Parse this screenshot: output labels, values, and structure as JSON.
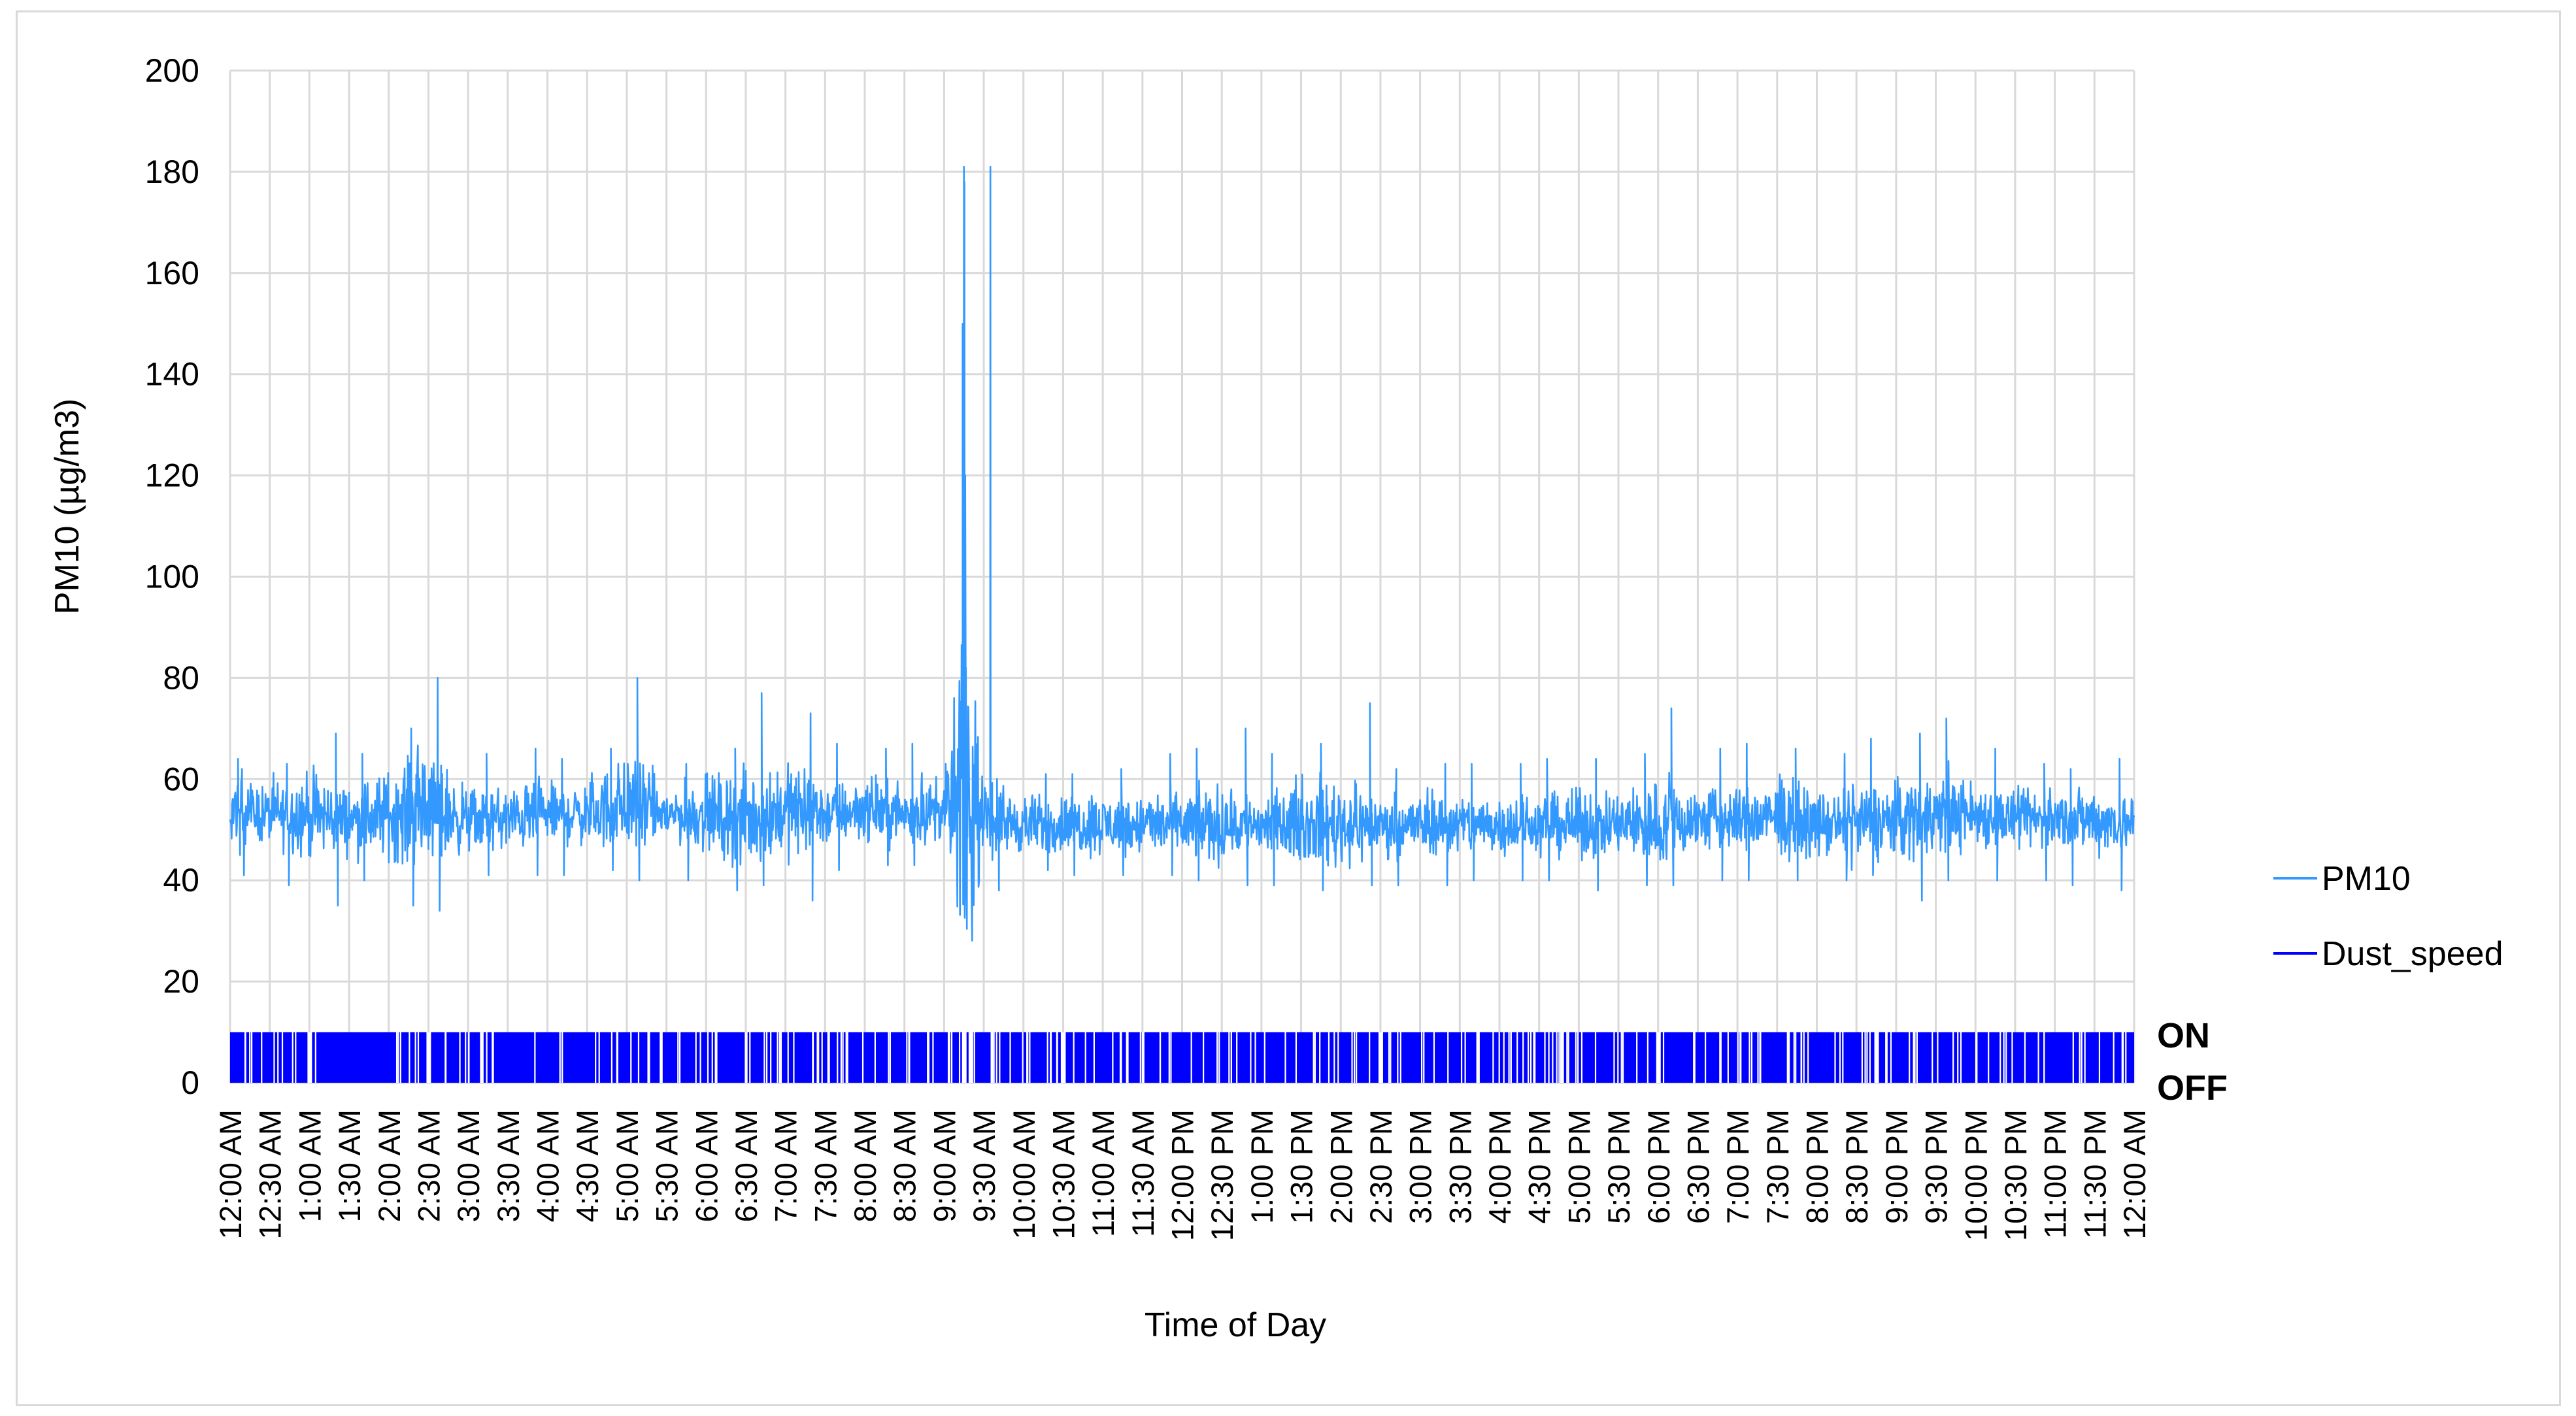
{
  "chart_data": {
    "type": "line",
    "title": "",
    "xlabel": "Time of Day",
    "ylabel": "PM10 (µg/m3)",
    "ylim": [
      0,
      200
    ],
    "yticks": [
      "0",
      "20",
      "40",
      "60",
      "80",
      "100",
      "120",
      "140",
      "160",
      "180",
      "200"
    ],
    "xticks": [
      "12:00 AM",
      "12:30 AM",
      "1:00 AM",
      "1:30 AM",
      "2:00 AM",
      "2:30 AM",
      "3:00 AM",
      "3:30 AM",
      "4:00 AM",
      "4:30 AM",
      "5:00 AM",
      "5:30 AM",
      "6:00 AM",
      "6:30 AM",
      "7:00 AM",
      "7:30 AM",
      "8:00 AM",
      "8:30 AM",
      "9:00 AM",
      "9:30 AM",
      "10:00 AM",
      "10:30 AM",
      "11:00 AM",
      "11:30 AM",
      "12:00 PM",
      "12:30 PM",
      "1:00 PM",
      "1:30 PM",
      "2:00 PM",
      "2:30 PM",
      "3:00 PM",
      "3:30 PM",
      "4:00 PM",
      "4:30 PM",
      "5:00 PM",
      "5:30 PM",
      "6:00 PM",
      "6:30 PM",
      "7:00 PM",
      "7:30 PM",
      "8:00 PM",
      "8:30 PM",
      "9:00 PM",
      "9:30 PM",
      "10:00 PM",
      "10:30 PM",
      "11:00 PM",
      "11:30 PM",
      "12:00 AM"
    ],
    "grid": true,
    "legend_position": "right",
    "series": [
      {
        "name": "PM10",
        "color": "#3399ff",
        "x": [
          "12:00 AM",
          "12:30 AM",
          "1:00 AM",
          "1:30 AM",
          "2:00 AM",
          "2:30 AM",
          "3:00 AM",
          "3:30 AM",
          "4:00 AM",
          "4:30 AM",
          "5:00 AM",
          "5:30 AM",
          "6:00 AM",
          "6:30 AM",
          "7:00 AM",
          "7:30 AM",
          "8:00 AM",
          "8:30 AM",
          "9:00 AM",
          "9:15 AM",
          "9:30 AM",
          "10:00 AM",
          "10:30 AM",
          "11:00 AM",
          "11:30 AM",
          "12:00 PM",
          "12:30 PM",
          "1:00 PM",
          "1:30 PM",
          "2:00 PM",
          "2:30 PM",
          "3:00 PM",
          "3:30 PM",
          "4:00 PM",
          "4:30 PM",
          "5:00 PM",
          "5:30 PM",
          "6:00 PM",
          "6:30 PM",
          "7:00 PM",
          "7:30 PM",
          "8:00 PM",
          "8:30 PM",
          "9:00 PM",
          "9:30 PM",
          "10:00 PM",
          "10:30 PM",
          "11:00 PM",
          "11:30 PM",
          "12:00 AM"
        ],
        "mean": [
          54,
          53,
          53,
          52,
          53,
          54,
          52,
          52,
          53,
          53,
          55,
          53,
          53,
          52,
          54,
          53,
          54,
          53,
          54,
          54,
          52,
          51,
          51,
          51,
          51,
          51,
          51,
          51,
          51,
          51,
          51,
          51,
          51,
          51,
          51,
          51,
          51,
          51,
          52,
          52,
          52,
          51,
          51,
          52,
          53,
          53,
          52,
          52,
          52,
          51
        ],
        "max": [
          64,
          63,
          69,
          65,
          70,
          80,
          65,
          66,
          64,
          66,
          80,
          63,
          66,
          77,
          73,
          67,
          66,
          67,
          66,
          181,
          60,
          61,
          61,
          62,
          65,
          66,
          70,
          65,
          67,
          75,
          62,
          63,
          63,
          63,
          64,
          64,
          65,
          74,
          66,
          67,
          66,
          65,
          68,
          69,
          72,
          66,
          63,
          62,
          64,
          62
        ],
        "min": [
          45,
          39,
          35,
          40,
          35,
          34,
          41,
          41,
          41,
          42,
          40,
          40,
          38,
          39,
          36,
          42,
          43,
          43,
          44,
          44,
          38,
          42,
          41,
          41,
          41,
          40,
          39,
          39,
          38,
          39,
          39,
          39,
          40,
          40,
          40,
          38,
          39,
          39,
          40,
          40,
          40,
          40,
          41,
          36,
          40,
          40,
          40,
          39,
          38,
          41
        ]
      },
      {
        "name": "Dust_speed",
        "color": "#0000ff",
        "on_value": 10,
        "off_value": 0,
        "state_labels": [
          "ON",
          "OFF"
        ],
        "off_times": [
          "1:00 AM",
          "2:30 AM",
          "9:15 AM",
          "9:20 AM",
          "10:30 AM",
          "2:30 PM",
          "6:00 PM",
          "8:45 PM"
        ]
      }
    ]
  }
}
